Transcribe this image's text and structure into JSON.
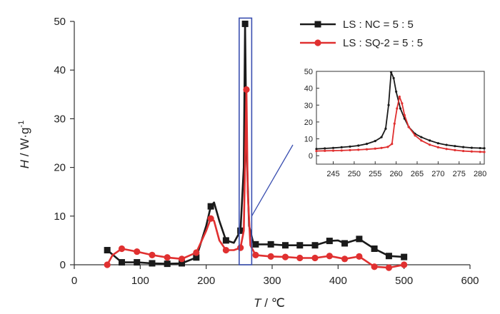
{
  "chart_data": [
    {
      "type": "line",
      "xlabel_italic": "T",
      "xlabel_unit": " / ℃",
      "ylabel_italic": "H",
      "ylabel_unit": " / W·g",
      "ylabel_sup": "-1",
      "xlim": [
        0,
        600
      ],
      "ylim": [
        0,
        50
      ],
      "xticks": [
        "0",
        "100",
        "200",
        "300",
        "400",
        "500",
        "600"
      ],
      "yticks": [
        "0",
        "10",
        "20",
        "30",
        "40",
        "50"
      ],
      "grid": false,
      "legend_position": "top-right",
      "series": [
        {
          "name": "LS : NC = 5 : 5",
          "color": "#1a1a1a",
          "marker": "square",
          "points": [
            [
              50,
              3
            ],
            [
              72,
              0.5
            ],
            [
              95,
              0.5
            ],
            [
              118,
              0.3
            ],
            [
              141,
              0.2
            ],
            [
              163,
              0.3
            ],
            [
              185,
              1.5
            ],
            [
              200,
              8
            ],
            [
              207,
              12
            ],
            [
              212,
              12.8
            ],
            [
              220,
              9
            ],
            [
              230,
              5
            ],
            [
              242,
              4.5
            ],
            [
              252,
              7
            ],
            [
              257,
              20
            ],
            [
              259,
              49.5
            ],
            [
              261,
              25
            ],
            [
              265,
              8
            ],
            [
              272,
              4.2
            ],
            [
              298,
              4.2
            ],
            [
              320,
              4
            ],
            [
              342,
              4
            ],
            [
              365,
              4
            ],
            [
              387,
              4.9
            ],
            [
              400,
              5
            ],
            [
              410,
              4.4
            ],
            [
              432,
              5.3
            ],
            [
              455,
              3.3
            ],
            [
              477,
              1.8
            ],
            [
              500,
              1.6
            ]
          ],
          "markers": [
            [
              50,
              3
            ],
            [
              72,
              0.5
            ],
            [
              95,
              0.5
            ],
            [
              118,
              0.3
            ],
            [
              141,
              0.2
            ],
            [
              163,
              0.3
            ],
            [
              185,
              1.5
            ],
            [
              207,
              12
            ],
            [
              230,
              5
            ],
            [
              252,
              7
            ],
            [
              259,
              49.5
            ],
            [
              275,
              4.2
            ],
            [
              298,
              4.2
            ],
            [
              320,
              4
            ],
            [
              342,
              4
            ],
            [
              365,
              4
            ],
            [
              387,
              4.9
            ],
            [
              410,
              4.4
            ],
            [
              432,
              5.3
            ],
            [
              455,
              3.3
            ],
            [
              477,
              1.8
            ],
            [
              500,
              1.6
            ]
          ]
        },
        {
          "name": "LS : SQ-2 = 5 : 5",
          "color": "#e03030",
          "marker": "circle",
          "points": [
            [
              50,
              0
            ],
            [
              58,
              2
            ],
            [
              72,
              3.3
            ],
            [
              95,
              2.7
            ],
            [
              118,
              2
            ],
            [
              141,
              1.5
            ],
            [
              163,
              1.2
            ],
            [
              185,
              2.5
            ],
            [
              200,
              7
            ],
            [
              207,
              9.5
            ],
            [
              212,
              9
            ],
            [
              220,
              5
            ],
            [
              230,
              3
            ],
            [
              242,
              3
            ],
            [
              252,
              3.5
            ],
            [
              257,
              7
            ],
            [
              261,
              36
            ],
            [
              263,
              15
            ],
            [
              267,
              4
            ],
            [
              275,
              2
            ],
            [
              298,
              1.7
            ],
            [
              320,
              1.6
            ],
            [
              342,
              1.4
            ],
            [
              365,
              1.4
            ],
            [
              387,
              1.8
            ],
            [
              410,
              1.2
            ],
            [
              432,
              1.7
            ],
            [
              455,
              -0.4
            ],
            [
              477,
              -0.6
            ],
            [
              500,
              0
            ]
          ],
          "markers": [
            [
              50,
              0
            ],
            [
              72,
              3.3
            ],
            [
              95,
              2.7
            ],
            [
              118,
              2
            ],
            [
              141,
              1.5
            ],
            [
              163,
              1.2
            ],
            [
              185,
              2.5
            ],
            [
              207,
              9.5
            ],
            [
              230,
              3
            ],
            [
              252,
              3.5
            ],
            [
              261,
              36
            ],
            [
              275,
              2
            ],
            [
              298,
              1.7
            ],
            [
              320,
              1.6
            ],
            [
              342,
              1.4
            ],
            [
              365,
              1.4
            ],
            [
              387,
              1.8
            ],
            [
              410,
              1.2
            ],
            [
              432,
              1.7
            ],
            [
              455,
              -0.4
            ],
            [
              477,
              -0.6
            ],
            [
              500,
              0
            ]
          ]
        }
      ],
      "highlight_box": {
        "x": [
          250,
          269
        ],
        "y": [
          0,
          49.8
        ]
      }
    },
    {
      "type": "line",
      "role": "inset",
      "xlim": [
        241,
        281
      ],
      "ylim": [
        -5,
        50
      ],
      "xticks": [
        "245",
        "250",
        "255",
        "260",
        "265",
        "270",
        "275",
        "280"
      ],
      "yticks": [
        "0",
        "10",
        "20",
        "30",
        "40",
        "50"
      ],
      "series": [
        {
          "name": "LS : NC = 5 : 5",
          "color": "#1a1a1a",
          "points": [
            [
              241,
              4
            ],
            [
              243,
              4.3
            ],
            [
              245,
              4.6
            ],
            [
              247,
              5
            ],
            [
              249,
              5.4
            ],
            [
              251,
              6
            ],
            [
              253,
              7
            ],
            [
              255,
              8.7
            ],
            [
              256.5,
              11
            ],
            [
              257.5,
              16
            ],
            [
              258.2,
              30
            ],
            [
              258.8,
              49.5
            ],
            [
              259.4,
              46
            ],
            [
              260,
              38
            ],
            [
              261,
              28
            ],
            [
              262,
              22
            ],
            [
              263,
              17
            ],
            [
              264.5,
              13
            ],
            [
              266,
              11
            ],
            [
              268,
              9
            ],
            [
              270,
              7.4
            ],
            [
              272,
              6.4
            ],
            [
              274,
              5.7
            ],
            [
              276,
              5.1
            ],
            [
              278,
              4.7
            ],
            [
              280,
              4.5
            ],
            [
              281,
              4.4
            ]
          ]
        },
        {
          "name": "LS : SQ-2 = 5 : 5",
          "color": "#e03030",
          "points": [
            [
              241,
              2.8
            ],
            [
              243,
              2.9
            ],
            [
              245,
              3
            ],
            [
              247,
              3.1
            ],
            [
              249,
              3.3
            ],
            [
              251,
              3.5
            ],
            [
              253,
              3.8
            ],
            [
              255,
              4.2
            ],
            [
              256.5,
              4.6
            ],
            [
              258,
              5.2
            ],
            [
              259,
              7
            ],
            [
              259.6,
              19
            ],
            [
              260.2,
              28
            ],
            [
              260.8,
              35
            ],
            [
              261.4,
              31
            ],
            [
              262,
              24
            ],
            [
              263,
              17
            ],
            [
              264.5,
              12
            ],
            [
              266,
              9
            ],
            [
              268,
              6.5
            ],
            [
              270,
              5
            ],
            [
              272,
              4
            ],
            [
              274,
              3.3
            ],
            [
              276,
              2.8
            ],
            [
              278,
              2.5
            ],
            [
              280,
              2.3
            ],
            [
              281,
              2.2
            ]
          ]
        }
      ]
    }
  ]
}
